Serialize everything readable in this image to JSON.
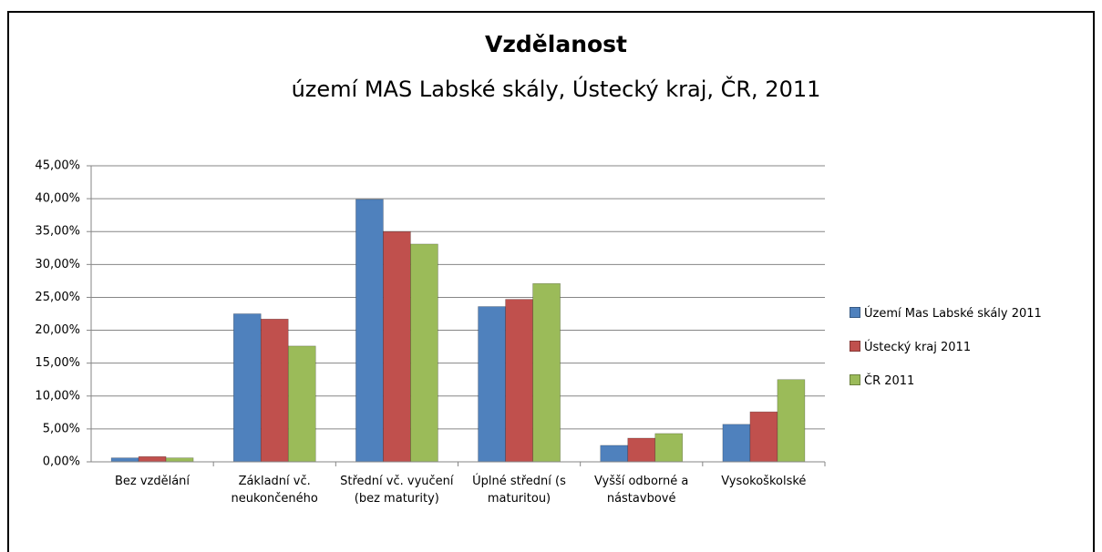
{
  "chart_data": {
    "type": "bar",
    "title": "Vzdělanost",
    "subtitle": "území MAS Labské skály, Ústecký kraj, ČR, 2011",
    "categories": [
      "Bez vzdělání",
      "Základní vč. neukončeného",
      "Střední vč. vyučení (bez maturity)",
      "Úplné střední (s maturitou)",
      "Vyšší odborné a nástavbové",
      "Vysokoškolské"
    ],
    "series": [
      {
        "name": "Území Mas Labské skály 2011",
        "color": "#4f81bd",
        "values": [
          0.6,
          22.5,
          39.9,
          23.6,
          2.5,
          5.7
        ]
      },
      {
        "name": "Ústecký kraj 2011",
        "color": "#c0504d",
        "values": [
          0.8,
          21.7,
          35.0,
          24.7,
          3.6,
          7.6
        ]
      },
      {
        "name": "ČR 2011",
        "color": "#9bbb59",
        "values": [
          0.6,
          17.6,
          33.1,
          27.1,
          4.3,
          12.5
        ]
      }
    ],
    "ylim": [
      0,
      45
    ],
    "yticks": [
      {
        "value": 0,
        "label": "0,00%"
      },
      {
        "value": 5,
        "label": "5,00%"
      },
      {
        "value": 10,
        "label": "10,00%"
      },
      {
        "value": 15,
        "label": "15,00%"
      },
      {
        "value": 20,
        "label": "20,00%"
      },
      {
        "value": 25,
        "label": "25,00%"
      },
      {
        "value": 30,
        "label": "30,00%"
      },
      {
        "value": 35,
        "label": "35,00%"
      },
      {
        "value": 40,
        "label": "40,00%"
      },
      {
        "value": 45,
        "label": "45,00%"
      }
    ],
    "grid": true,
    "legend": "right"
  }
}
